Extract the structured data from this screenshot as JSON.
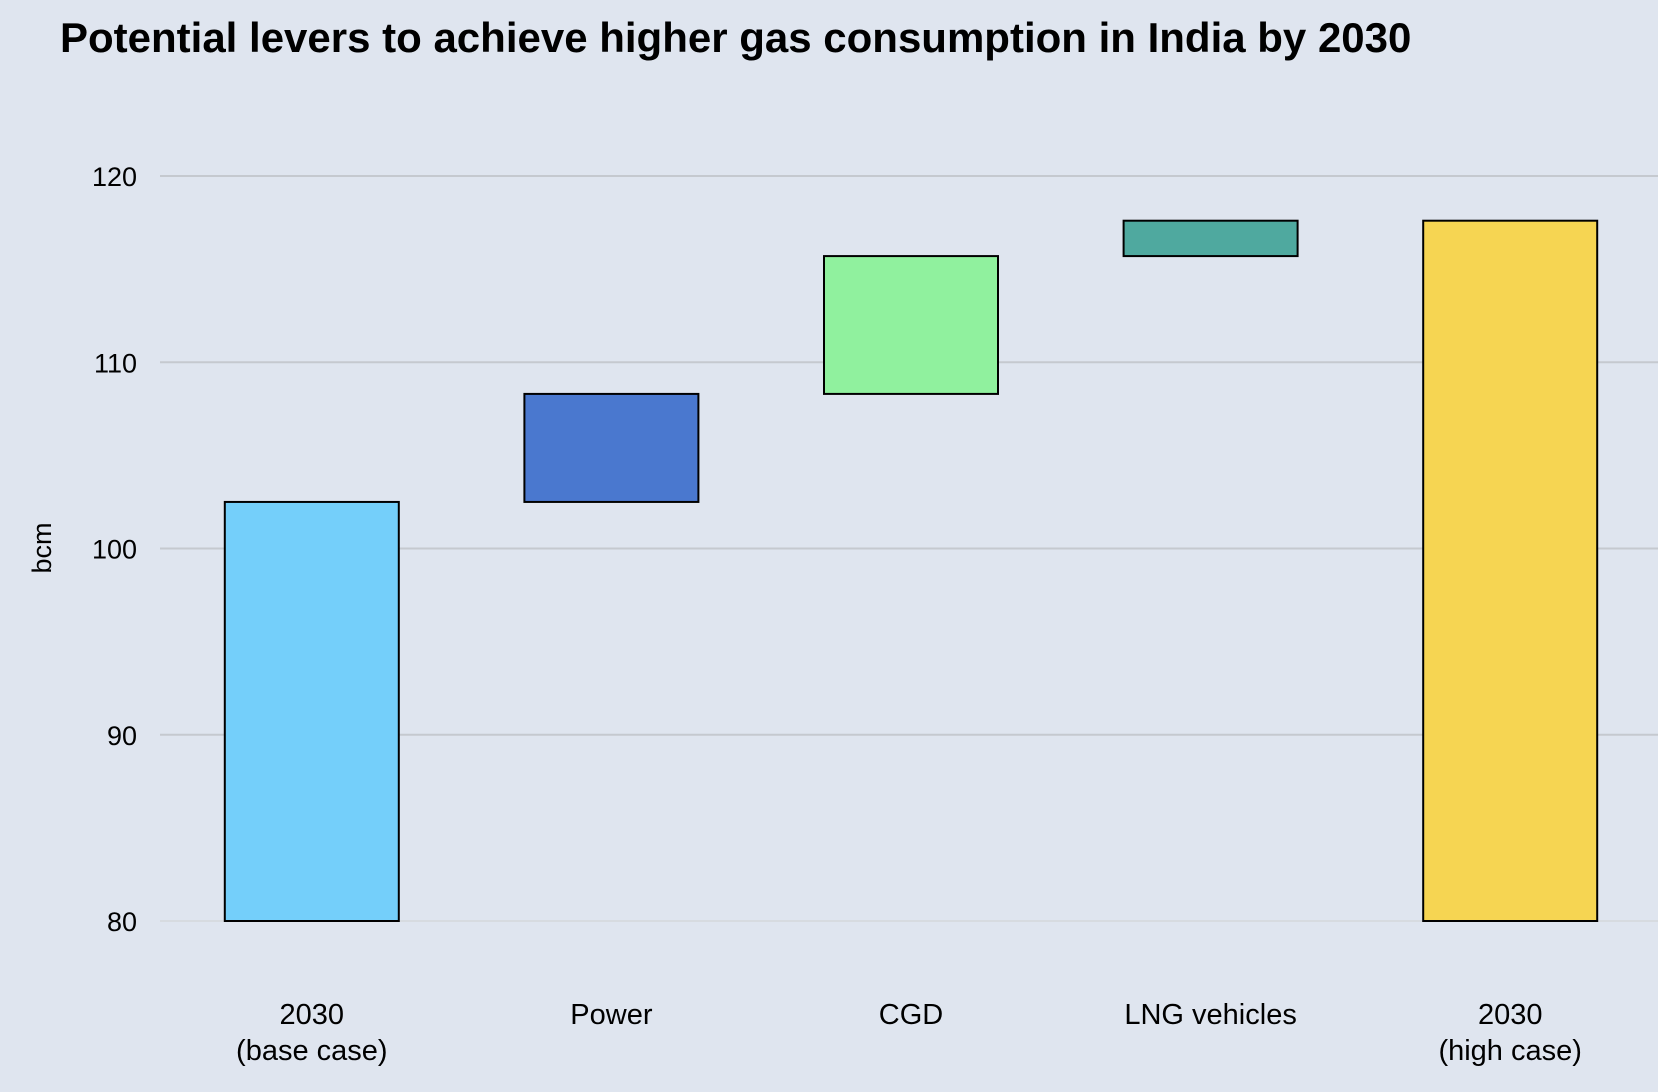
{
  "chart_data": {
    "type": "bar",
    "subtype": "waterfall",
    "title": "Potential levers to achieve higher gas consumption in India by 2030",
    "xlabel": "",
    "ylabel": "bcm",
    "ylim": [
      80,
      120
    ],
    "yticks": [
      80,
      90,
      100,
      110,
      120
    ],
    "grid": true,
    "categories": [
      [
        "2030",
        "(base case)"
      ],
      [
        "Power"
      ],
      [
        "CGD"
      ],
      [
        "LNG vehicles"
      ],
      [
        "2030",
        "(high case)"
      ]
    ],
    "bars": [
      {
        "name": "2030 (base case)",
        "base": 80,
        "top": 102.5,
        "value": 102.5,
        "kind": "total",
        "color": "#74cffa"
      },
      {
        "name": "Power",
        "base": 102.5,
        "top": 108.3,
        "value": 5.8,
        "kind": "increment",
        "color": "#4a78cf"
      },
      {
        "name": "CGD",
        "base": 108.3,
        "top": 115.7,
        "value": 7.4,
        "kind": "increment",
        "color": "#90f19e"
      },
      {
        "name": "LNG vehicles",
        "base": 115.7,
        "top": 117.6,
        "value": 1.9,
        "kind": "increment",
        "color": "#4fa99f"
      },
      {
        "name": "2030 (high case)",
        "base": 80,
        "top": 117.6,
        "value": 117.6,
        "kind": "total",
        "color": "#f6d552"
      }
    ],
    "colors": {
      "background": "#dfe5ef",
      "grid": "#c5c9cf",
      "outline": "#000000"
    }
  }
}
